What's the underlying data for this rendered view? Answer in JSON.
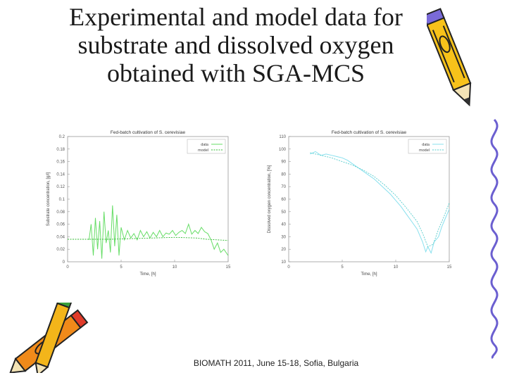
{
  "slide": {
    "title_lines": [
      "Experimental and model data for",
      "substrate and dissolved oxygen",
      "obtained with SGA-MCS"
    ],
    "footer": "BIOMATH 2011, June 15-18, Sofia, Bulgaria"
  },
  "decorations": [
    "pencil-icon",
    "pencils-icon",
    "squiggle-border-icon"
  ],
  "chart_data": [
    {
      "type": "line",
      "title": "Fed-batch cultivation of S. cerevisiae",
      "xlabel": "Time, [h]",
      "ylabel": "Substrate concentration, [g/l]",
      "xlim": [
        0,
        15
      ],
      "ylim": [
        0,
        0.2
      ],
      "xticks": [
        "0",
        "5",
        "10",
        "15"
      ],
      "yticks": [
        "0",
        "0.02",
        "0.04",
        "0.06",
        "0.08",
        "0.1",
        "0.12",
        "0.14",
        "0.16",
        "0.18",
        "0.2"
      ],
      "legend_position": "top-right",
      "series": [
        {
          "name": "data",
          "color": "#66dd66",
          "x": [
            2.0,
            2.2,
            2.4,
            2.6,
            2.8,
            3.0,
            3.2,
            3.4,
            3.6,
            3.8,
            4.0,
            4.2,
            4.4,
            4.6,
            4.8,
            5.0,
            5.3,
            5.6,
            5.9,
            6.2,
            6.5,
            6.8,
            7.1,
            7.4,
            7.7,
            8.0,
            8.3,
            8.6,
            8.9,
            9.2,
            9.5,
            9.8,
            10.1,
            10.4,
            10.7,
            11.0,
            11.3,
            11.6,
            11.9,
            12.2,
            12.5,
            12.8,
            13.1,
            13.4,
            13.7,
            14.0,
            14.3,
            14.6,
            15.0
          ],
          "y": [
            0.035,
            0.06,
            0.01,
            0.07,
            0.02,
            0.065,
            0.005,
            0.08,
            0.03,
            0.05,
            0.015,
            0.09,
            0.025,
            0.075,
            0.01,
            0.055,
            0.035,
            0.05,
            0.038,
            0.045,
            0.035,
            0.05,
            0.04,
            0.048,
            0.038,
            0.047,
            0.04,
            0.05,
            0.04,
            0.046,
            0.044,
            0.05,
            0.042,
            0.047,
            0.05,
            0.045,
            0.06,
            0.044,
            0.05,
            0.045,
            0.055,
            0.048,
            0.045,
            0.035,
            0.02,
            0.03,
            0.015,
            0.02,
            0.01
          ]
        },
        {
          "name": "model",
          "color": "#33bb33",
          "x": [
            0,
            2.0,
            4.0,
            6.0,
            8.0,
            10.0,
            12.0,
            13.0,
            15.0
          ],
          "y": [
            0.036,
            0.036,
            0.036,
            0.037,
            0.038,
            0.039,
            0.038,
            0.036,
            0.034
          ]
        }
      ]
    },
    {
      "type": "line",
      "title": "Fed-batch cultivation of S. cerevisiae",
      "xlabel": "Time, [h]",
      "ylabel": "Dissolved oxygen concentration, [%]",
      "xlim": [
        0,
        15
      ],
      "ylim": [
        10,
        110
      ],
      "xticks": [
        "0",
        "5",
        "10",
        "15"
      ],
      "yticks": [
        "10",
        "20",
        "30",
        "40",
        "50",
        "60",
        "70",
        "80",
        "90",
        "100",
        "110"
      ],
      "legend_position": "top-right",
      "series": [
        {
          "name": "data",
          "color": "#88e0ee",
          "x": [
            2.0,
            2.5,
            3.0,
            3.5,
            4.0,
            4.5,
            5.0,
            5.5,
            6.0,
            6.5,
            7.0,
            7.5,
            8.0,
            8.5,
            9.0,
            9.5,
            10.0,
            10.5,
            11.0,
            11.5,
            12.0,
            12.5,
            12.8,
            13.0,
            13.3,
            13.6,
            14.0,
            14.3,
            14.6,
            15.0
          ],
          "y": [
            96,
            98,
            95,
            96,
            95,
            94,
            93,
            91,
            88,
            85,
            82,
            79,
            76,
            72,
            68,
            64,
            59,
            54,
            48,
            42,
            36,
            26,
            18,
            22,
            17,
            26,
            30,
            38,
            44,
            52
          ]
        },
        {
          "name": "model",
          "color": "#55cccc",
          "x": [
            2.0,
            3.0,
            4.0,
            5.0,
            6.0,
            7.0,
            8.0,
            9.0,
            10.0,
            11.0,
            12.0,
            12.5,
            13.0,
            13.5,
            14.0,
            14.5,
            15.0
          ],
          "y": [
            97,
            95,
            93,
            90,
            87,
            83,
            78,
            71,
            63,
            53,
            42,
            33,
            22,
            24,
            36,
            46,
            57
          ]
        }
      ]
    }
  ]
}
